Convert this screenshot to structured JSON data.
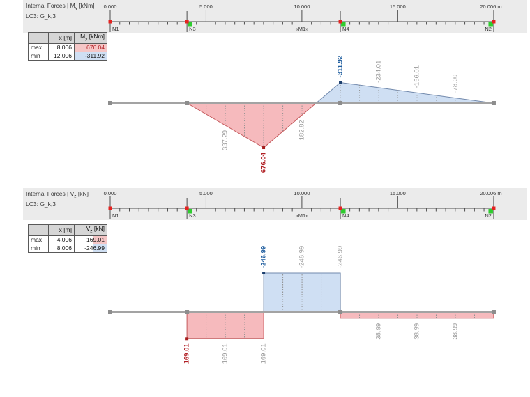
{
  "colors": {
    "band_bg": "#ebebeb",
    "positive_fill": "#f6babd",
    "positive_stroke": "#c4595c",
    "negative_fill": "#cfdff3",
    "negative_stroke": "#7289ac",
    "max_text": "#b01e23",
    "min_text": "#1d5c9e",
    "gray_text": "#9b9b9b",
    "beam": "#a3a3a3",
    "beam_node": "#8d8d8d",
    "ruler": "#4d4d4d",
    "ruler_text": "#333333",
    "node_marker_red": "#e42320",
    "node_marker_green": "#2ecc2e",
    "division_line": "#909090",
    "marker_max": "#a51d1d",
    "marker_min": "#1c3f6e",
    "table_hl_max": "#f5c6c6",
    "table_hl_min": "#cfdff3"
  },
  "ruler": {
    "length_m": 20.006,
    "minor_step_m": 0.5,
    "labels": [
      {
        "m": 0,
        "text": "0.000"
      },
      {
        "m": 5,
        "text": "5.000"
      },
      {
        "m": 10,
        "text": "10.000"
      },
      {
        "m": 15,
        "text": "15.000"
      },
      {
        "m": 20.006,
        "text": "20.006 m"
      }
    ],
    "nodes": [
      {
        "m": 0,
        "name": "N1",
        "align": "right",
        "green": null
      },
      {
        "m": 4.006,
        "name": "N3",
        "align": "right",
        "green": "right"
      },
      {
        "m": 12.006,
        "name": "N4",
        "align": "right",
        "green": "right"
      },
      {
        "m": 20.006,
        "name": "N2",
        "align": "left",
        "green": "left"
      }
    ],
    "member_label": {
      "m": 10.003,
      "text": "«M1»"
    }
  },
  "panels": [
    {
      "title_prefix": "Internal Forces | M",
      "title_sub": "y",
      "title_suffix": " [kNm]",
      "subtitle": "LC3: G_k,3",
      "table": {
        "corner": "",
        "x_header": "x [m]",
        "value_header_prefix": "M",
        "value_header_sub": "y",
        "value_header_suffix": " [kNm]",
        "rows": [
          {
            "label": "max",
            "x": "8.006",
            "value": "676.04",
            "hl": "max"
          },
          {
            "label": "min",
            "x": "12.006",
            "value": "-311.92",
            "hl": "min"
          }
        ]
      },
      "diagram": {
        "type": "moment",
        "unit": "kNm",
        "points": [
          [
            0,
            0
          ],
          [
            4.006,
            0
          ],
          [
            8.006,
            676.04
          ],
          [
            12.006,
            -311.92
          ],
          [
            20.006,
            0
          ]
        ],
        "value_labels": [
          {
            "m": 6.006,
            "text": "337.29",
            "style": "gray",
            "side": "below"
          },
          {
            "m": 8.006,
            "text": "676.04",
            "style": "max",
            "side": "below"
          },
          {
            "m": 10.006,
            "text": "182.82",
            "style": "gray",
            "side": "below"
          },
          {
            "m": 12.006,
            "text": "-311.92",
            "style": "min",
            "side": "above"
          },
          {
            "m": 14.006,
            "text": "-234.01",
            "style": "gray",
            "side": "above"
          },
          {
            "m": 16.006,
            "text": "-156.01",
            "style": "gray",
            "side": "above"
          },
          {
            "m": 18.006,
            "text": "-78.00",
            "style": "gray",
            "side": "above"
          }
        ],
        "markers": [
          {
            "m": 8.006,
            "v": 676.04,
            "style": "max"
          },
          {
            "m": 12.006,
            "v": -311.92,
            "style": "min"
          }
        ]
      }
    },
    {
      "title_prefix": "Internal Forces | V",
      "title_sub": "z",
      "title_suffix": " [kN]",
      "subtitle": "LC3: G_k,3",
      "table": {
        "corner": "",
        "x_header": "x [m]",
        "value_header_prefix": "V",
        "value_header_sub": "z",
        "value_header_suffix": " [kN]",
        "rows": [
          {
            "label": "max",
            "x": "4.006",
            "value": "169.01",
            "hl": "max"
          },
          {
            "label": "min",
            "x": "8.006",
            "value": "-246.99",
            "hl": "min"
          }
        ]
      },
      "diagram": {
        "type": "shear",
        "unit": "kN",
        "segments": [
          [
            0,
            4.006,
            0
          ],
          [
            4.006,
            8.006,
            169.01
          ],
          [
            8.006,
            12.006,
            -246.99
          ],
          [
            12.006,
            20.006,
            38.99
          ]
        ],
        "value_labels": [
          {
            "m": 4.006,
            "text": "169.01",
            "style": "max",
            "side": "below"
          },
          {
            "m": 6.006,
            "text": "169.01",
            "style": "gray",
            "side": "below"
          },
          {
            "m": 8.006,
            "text": "169.01",
            "style": "gray",
            "side": "below"
          },
          {
            "m": 8.006,
            "text": "-246.99",
            "style": "min",
            "side": "above"
          },
          {
            "m": 10.006,
            "text": "-246.99",
            "style": "gray",
            "side": "above"
          },
          {
            "m": 12.006,
            "text": "-246.99",
            "style": "gray",
            "side": "above"
          },
          {
            "m": 14.006,
            "text": "38.99",
            "style": "gray",
            "side": "below"
          },
          {
            "m": 16.006,
            "text": "38.99",
            "style": "gray",
            "side": "below"
          },
          {
            "m": 18.006,
            "text": "38.99",
            "style": "gray",
            "side": "below"
          }
        ],
        "markers": [
          {
            "m": 4.006,
            "v": 169.01,
            "style": "max"
          },
          {
            "m": 8.006,
            "v": -246.99,
            "style": "min"
          }
        ]
      }
    }
  ],
  "chart_data": [
    {
      "type": "area",
      "title": "Internal Forces | My [kNm]",
      "subtitle": "LC3: G_k,3",
      "xlabel": "x [m]",
      "ylabel": "My [kNm]",
      "x_range": [
        0,
        20.006
      ],
      "series": [
        {
          "name": "My",
          "x": [
            0,
            4.006,
            8.006,
            12.006,
            20.006
          ],
          "values": [
            0,
            0,
            676.04,
            -311.92,
            0
          ]
        }
      ],
      "annotations": [
        {
          "x": 6.006,
          "value": 337.29
        },
        {
          "x": 8.006,
          "value": 676.04,
          "extreme": "max"
        },
        {
          "x": 10.006,
          "value": 182.82
        },
        {
          "x": 12.006,
          "value": -311.92,
          "extreme": "min"
        },
        {
          "x": 14.006,
          "value": -234.01
        },
        {
          "x": 16.006,
          "value": -156.01
        },
        {
          "x": 18.006,
          "value": -78.0
        }
      ]
    },
    {
      "type": "area",
      "title": "Internal Forces | Vz [kN]",
      "subtitle": "LC3: G_k,3",
      "xlabel": "x [m]",
      "ylabel": "Vz [kN]",
      "x_range": [
        0,
        20.006
      ],
      "series": [
        {
          "name": "Vz",
          "step_segments": [
            [
              0,
              4.006,
              0
            ],
            [
              4.006,
              8.006,
              169.01
            ],
            [
              8.006,
              12.006,
              -246.99
            ],
            [
              12.006,
              20.006,
              38.99
            ]
          ]
        }
      ],
      "annotations": [
        {
          "x": 4.006,
          "value": 169.01,
          "extreme": "max"
        },
        {
          "x": 6.006,
          "value": 169.01
        },
        {
          "x": 8.006,
          "value": 169.01
        },
        {
          "x": 8.006,
          "value": -246.99,
          "extreme": "min"
        },
        {
          "x": 10.006,
          "value": -246.99
        },
        {
          "x": 12.006,
          "value": -246.99
        },
        {
          "x": 14.006,
          "value": 38.99
        },
        {
          "x": 16.006,
          "value": 38.99
        },
        {
          "x": 18.006,
          "value": 38.99
        }
      ]
    }
  ]
}
